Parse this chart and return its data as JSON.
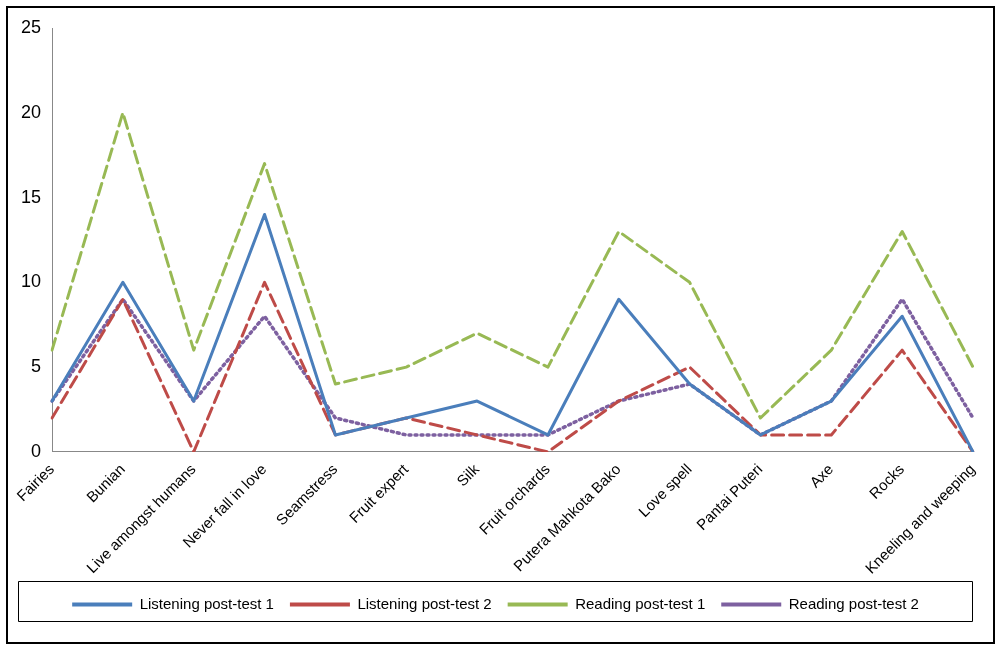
{
  "chart_data": {
    "type": "line",
    "categories": [
      "Fairies",
      "Bunian",
      "Live amongst humans",
      "Never fall in love",
      "Seamstress",
      "Fruit expert",
      "Silk",
      "Fruit orchards",
      "Putera Mahkota Bako",
      "Love spell",
      "Pantai Puteri",
      "Axe",
      "Rocks",
      "Kneeling and weeping"
    ],
    "series": [
      {
        "name": "Listening post-test 1",
        "color": "#4a7ebb",
        "line_style": "solid",
        "values": [
          3,
          10,
          3,
          14,
          1,
          2,
          3,
          1,
          9,
          4,
          1,
          3,
          8,
          0
        ]
      },
      {
        "name": "Listening post-test 2",
        "color": "#be4b48",
        "line_style": "dashed",
        "values": [
          2,
          9,
          0,
          10,
          1,
          2,
          1,
          0,
          3,
          5,
          1,
          1,
          6,
          0
        ]
      },
      {
        "name": "Reading post-test 1",
        "color": "#98b954",
        "line_style": "dashed",
        "values": [
          6,
          20,
          6,
          17,
          4,
          5,
          7,
          5,
          13,
          10,
          2,
          6,
          13,
          5
        ]
      },
      {
        "name": "Reading post-test 2",
        "color": "#7d60a0",
        "line_style": "dotted",
        "values": [
          3,
          9,
          3,
          8,
          2,
          1,
          1,
          1,
          3,
          4,
          1,
          3,
          9,
          2
        ]
      }
    ],
    "ylim": [
      0,
      25
    ],
    "yticks": [
      0,
      5,
      10,
      15,
      20,
      25
    ],
    "grid": false,
    "legend": "bottom",
    "marker": "none"
  }
}
